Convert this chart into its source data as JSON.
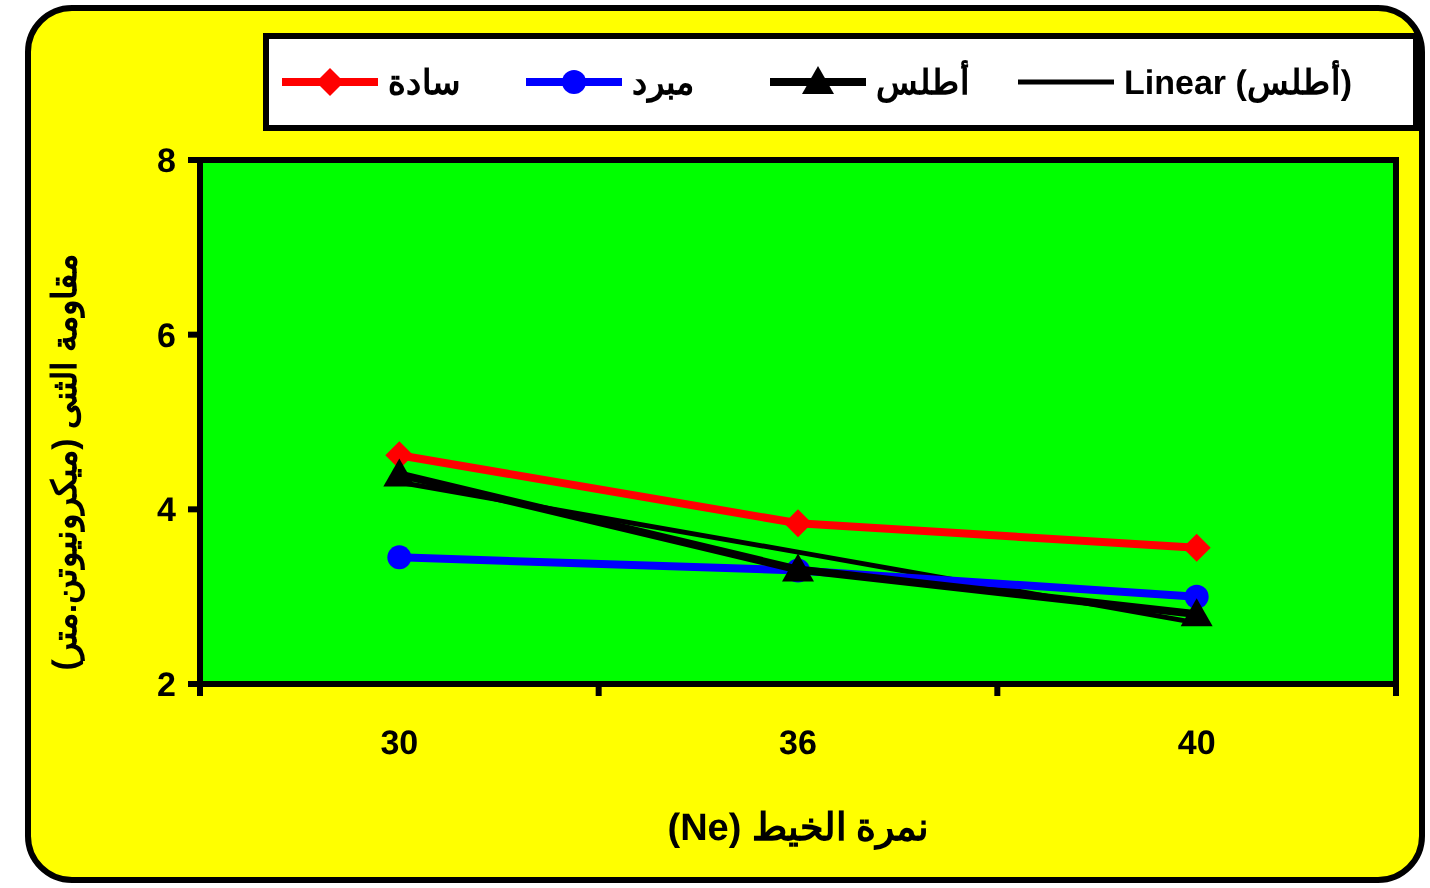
{
  "chart_data": {
    "type": "line",
    "xlabel": "نمرة الخيط (Ne)",
    "ylabel": "مقاومة الثنى (ميكرونيوتن.متر)",
    "categories": [
      "30",
      "36",
      "40"
    ],
    "ylim": [
      2,
      8
    ],
    "yticks": [
      2,
      4,
      6,
      8
    ],
    "grid": false,
    "legend": "top",
    "series": [
      {
        "name": "سادة",
        "color": "#ff0000",
        "marker": "diamond",
        "values": [
          4.62,
          3.84,
          3.56
        ]
      },
      {
        "name": "مبرد",
        "color": "#0000ff",
        "marker": "circle",
        "values": [
          3.45,
          3.3,
          3.0
        ]
      },
      {
        "name": "أطلس",
        "color": "#000000",
        "marker": "triangle",
        "values": [
          4.4,
          3.31,
          2.8
        ]
      },
      {
        "name": "Linear (أطلس)",
        "color": "#000000",
        "marker": "none",
        "line_style": "solid",
        "values": [
          4.31,
          3.51,
          2.7
        ]
      }
    ]
  }
}
